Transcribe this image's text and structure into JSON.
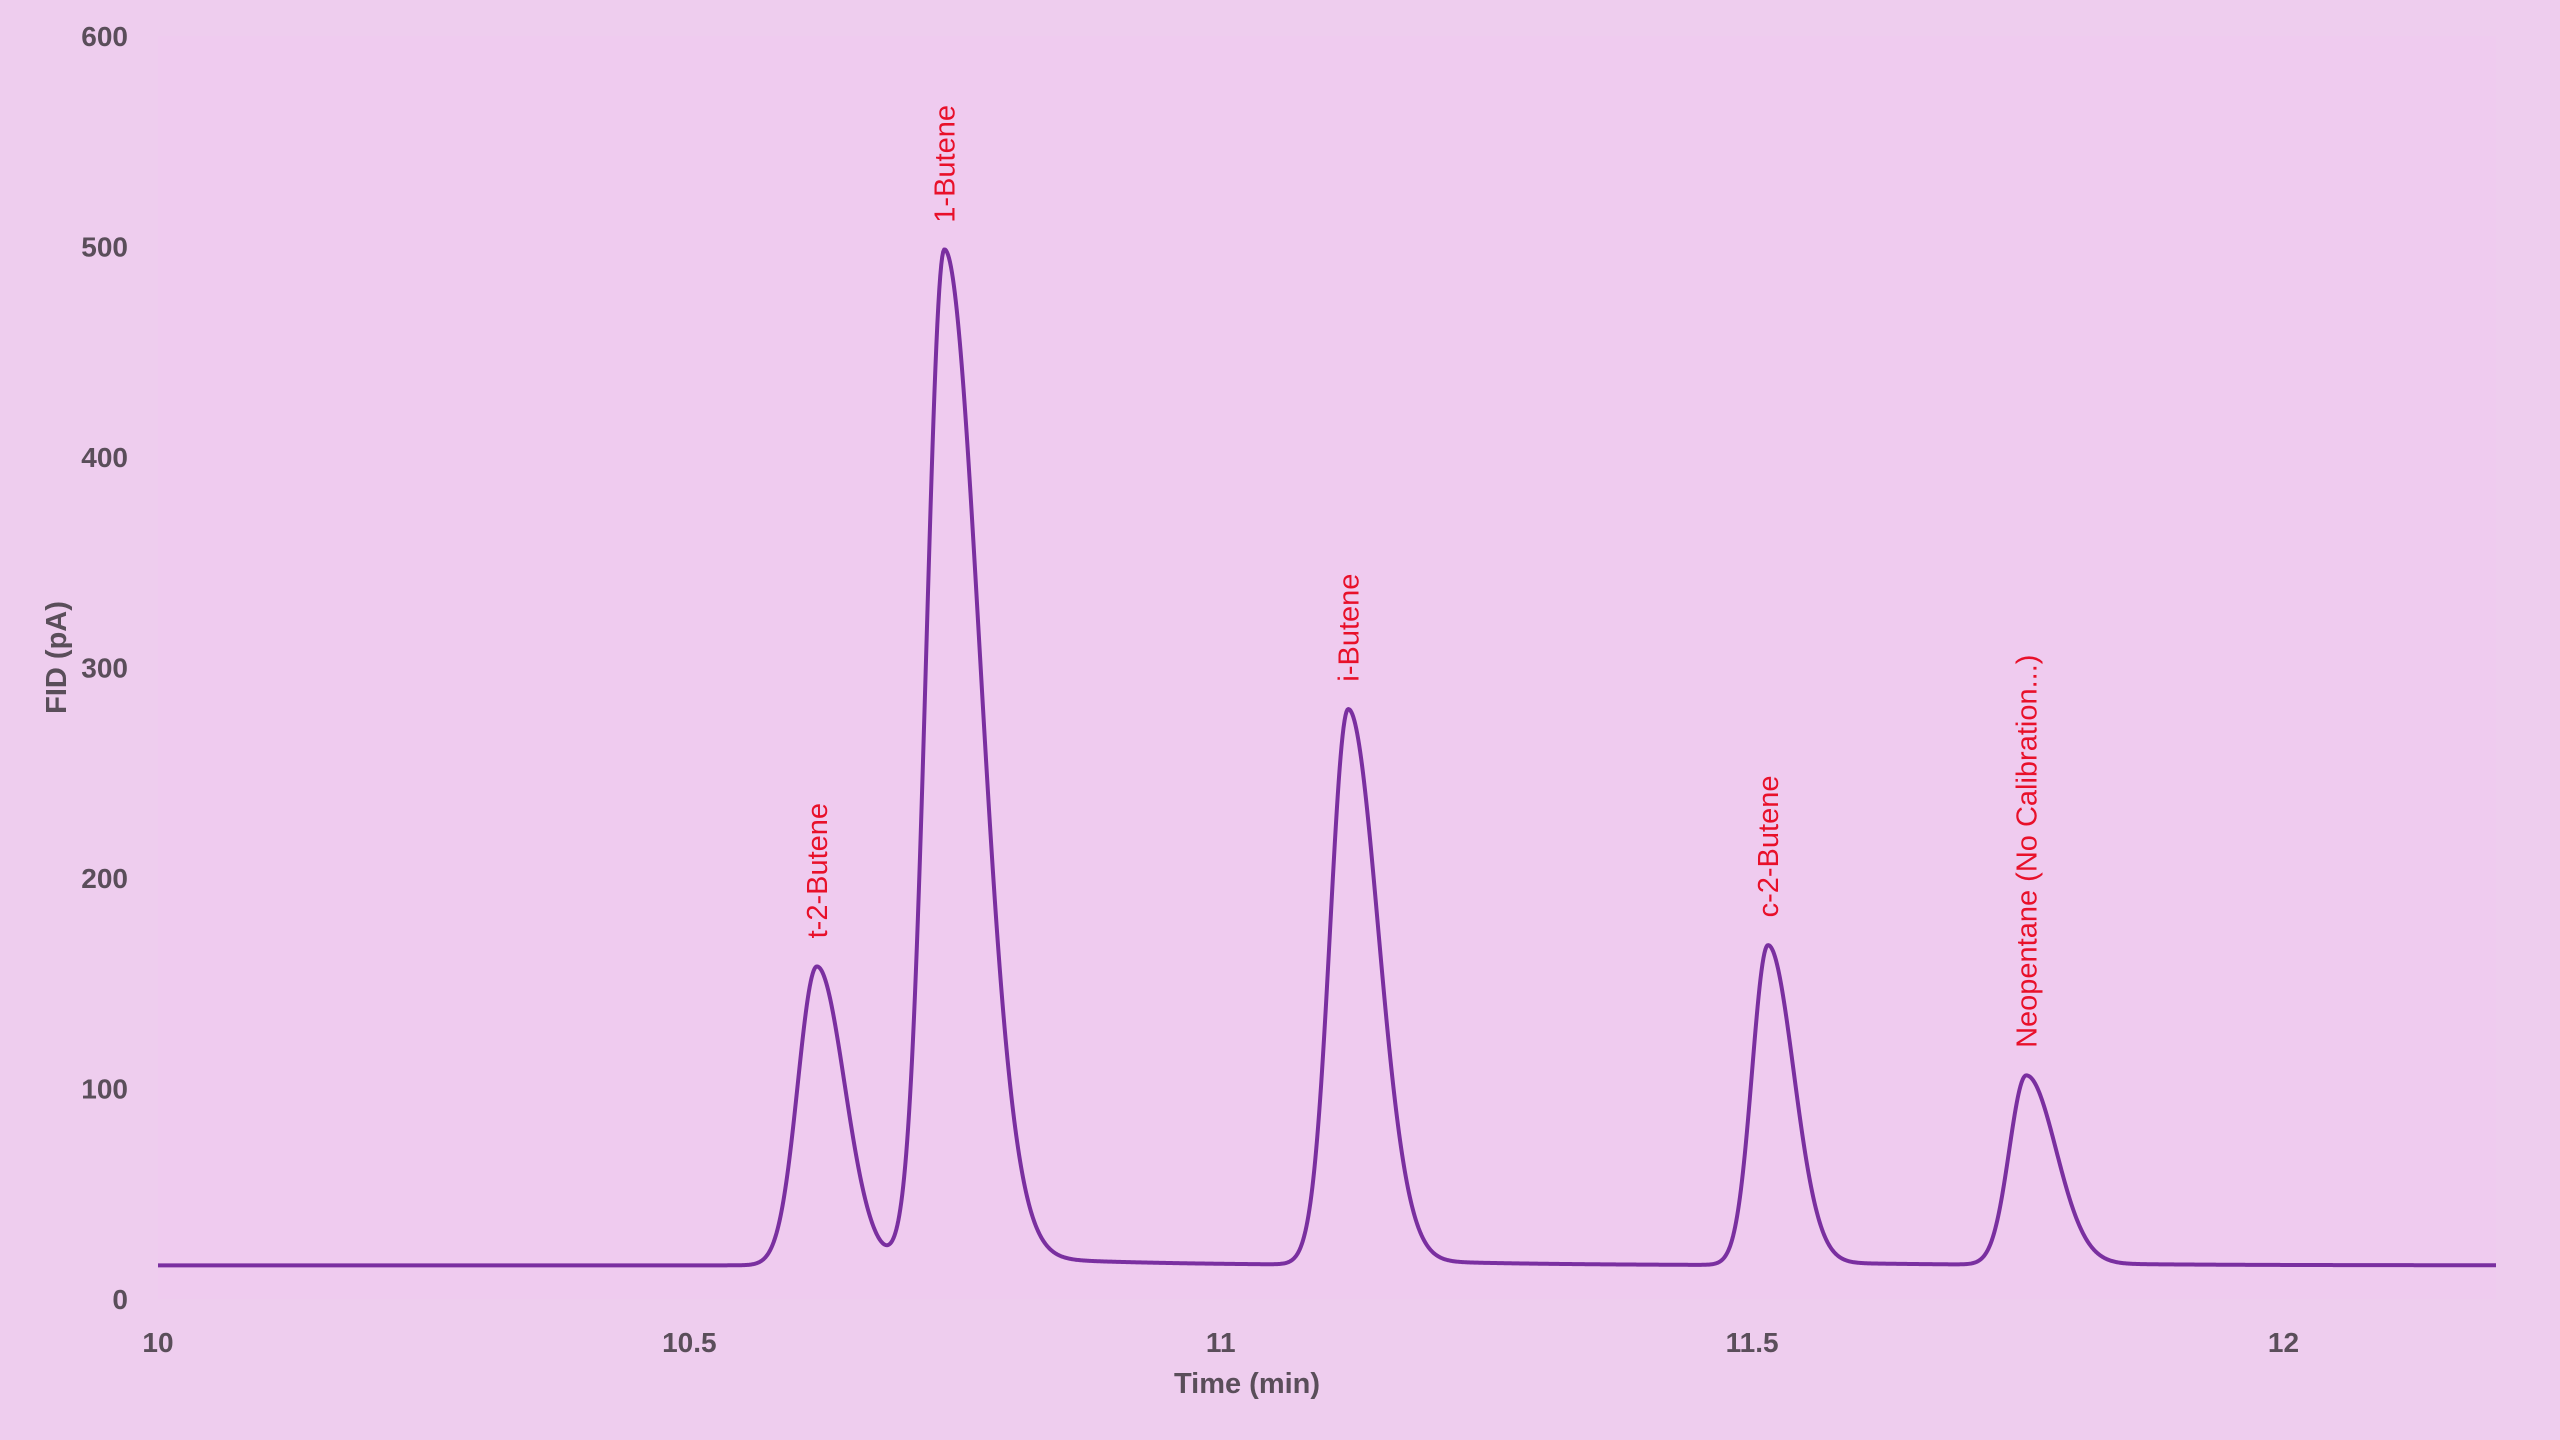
{
  "colors": {
    "background": "#eecdee",
    "plot_background": "#efcbef",
    "trace": "#7a2fa0",
    "peak_label": "#e8102a",
    "axis_text": "#5a4e5a"
  },
  "chart_data": {
    "type": "line",
    "xlabel": "Time (min)",
    "ylabel": "FID (pA)",
    "xlim": [
      10,
      12.2
    ],
    "ylim": [
      0,
      600
    ],
    "x_ticks": [
      10,
      10.5,
      11,
      11.5,
      12
    ],
    "x_tick_labels": [
      "10",
      "10.5",
      "11",
      "11.5",
      "12"
    ],
    "y_ticks": [
      0,
      100,
      200,
      300,
      400,
      500,
      600
    ],
    "y_tick_labels": [
      "0",
      "100",
      "200",
      "300",
      "400",
      "500",
      "600"
    ],
    "grid": false,
    "baseline": 16,
    "peaks": [
      {
        "name": "t-2-Butene",
        "time": 10.62,
        "height": 158
      },
      {
        "name": "1-Butene",
        "time": 10.74,
        "height": 498
      },
      {
        "name": "i-Butene",
        "time": 11.12,
        "height": 280
      },
      {
        "name": "c-2-Butene",
        "time": 11.515,
        "height": 168
      },
      {
        "name": "Neopentane (No Calibration...)",
        "time": 11.758,
        "height": 106
      }
    ]
  }
}
